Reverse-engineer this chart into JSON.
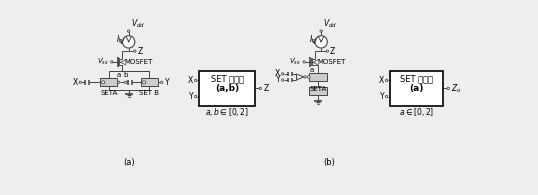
{
  "bg_color": "#eeeeee",
  "line_color": "#444444",
  "box_color": "#ffffff",
  "text_color": "#000000",
  "fig_width": 5.38,
  "fig_height": 1.95,
  "dpi": 100,
  "caption_a": "(a)",
  "caption_b": "(b)",
  "label_Vdd": "$V_{dd}$",
  "label_I0": "$I_0$",
  "label_Vss": "$V_{ss}$",
  "label_MOSFET": "MOSFET",
  "label_SETA": "SETA",
  "label_SETB": "SET B",
  "label_X": "X",
  "label_Y": "Y",
  "label_Z": "Z",
  "label_a": "a",
  "label_b": "b",
  "box1_line1": "SET 并联门",
  "box1_sub": "(a,b)",
  "box1_range": "$a,b\\in[0,2]$",
  "box2_line1": "SET 求和门",
  "box2_sub": "(a)",
  "box2_range": "$a\\in[0,2]$"
}
